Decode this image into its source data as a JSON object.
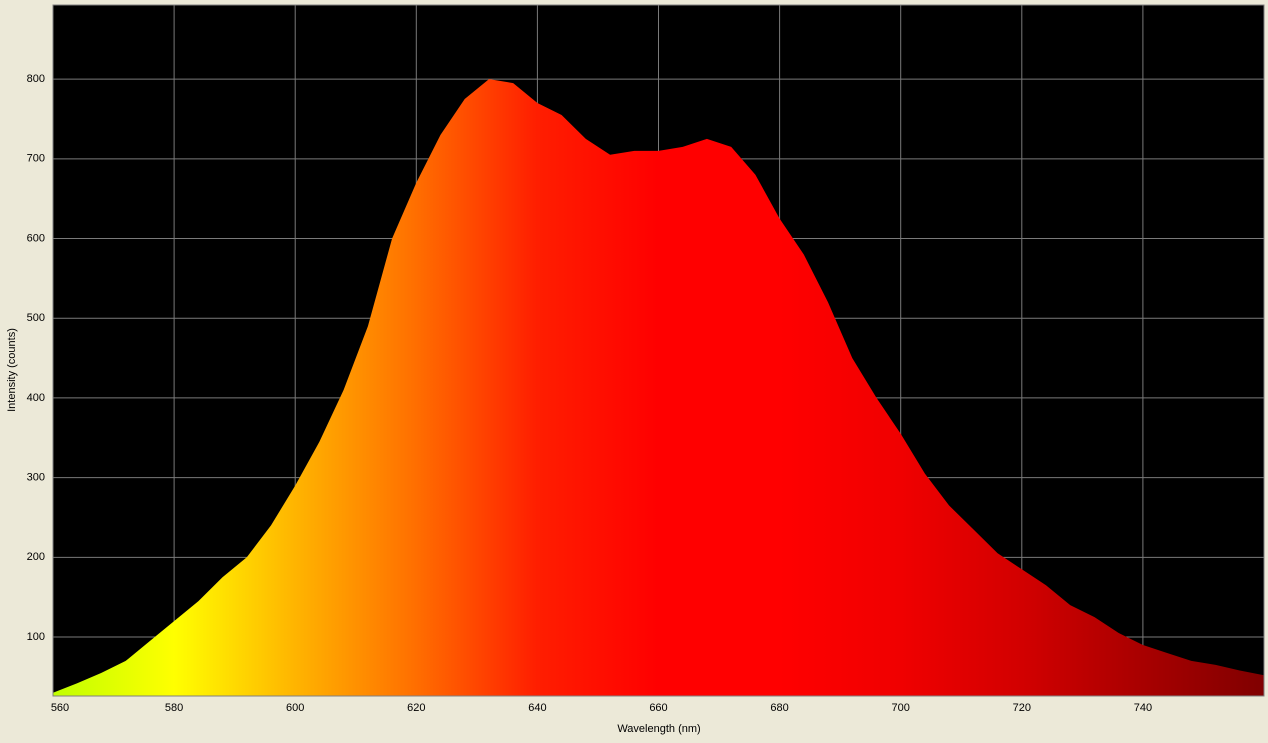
{
  "chart_data": {
    "type": "area",
    "x_label": "Wavelength (nm)",
    "y_label": "Intensity (counts)",
    "x": [
      560,
      564,
      568,
      572,
      576,
      580,
      584,
      588,
      592,
      596,
      600,
      604,
      608,
      612,
      616,
      620,
      624,
      628,
      632,
      636,
      640,
      644,
      648,
      652,
      656,
      660,
      664,
      668,
      672,
      676,
      680,
      684,
      688,
      692,
      696,
      700,
      704,
      708,
      712,
      716,
      720,
      724,
      728,
      732,
      736,
      740,
      744,
      748,
      752,
      756,
      760
    ],
    "values": [
      30,
      42,
      55,
      70,
      95,
      120,
      145,
      175,
      200,
      240,
      290,
      345,
      410,
      490,
      600,
      670,
      730,
      775,
      800,
      795,
      770,
      755,
      725,
      705,
      710,
      710,
      715,
      725,
      715,
      680,
      625,
      580,
      520,
      450,
      400,
      355,
      305,
      265,
      235,
      205,
      185,
      165,
      140,
      125,
      105,
      90,
      80,
      70,
      65,
      58,
      52
    ],
    "fill_gradient": [
      "#c0ff00",
      "#ffff00",
      "#ffb400",
      "#ff6e00",
      "#ff1e00",
      "#ff0000",
      "#ff0000",
      "#f00000",
      "#d20000",
      "#a80000",
      "#800000"
    ],
    "background": "#000000",
    "xlim": [
      560,
      760
    ],
    "ylim": [
      26,
      893
    ],
    "xticks": [
      560,
      580,
      600,
      620,
      640,
      660,
      680,
      700,
      720,
      740
    ],
    "yticks": [
      100,
      200,
      300,
      400,
      500,
      600,
      700,
      800
    ],
    "grid": true
  }
}
